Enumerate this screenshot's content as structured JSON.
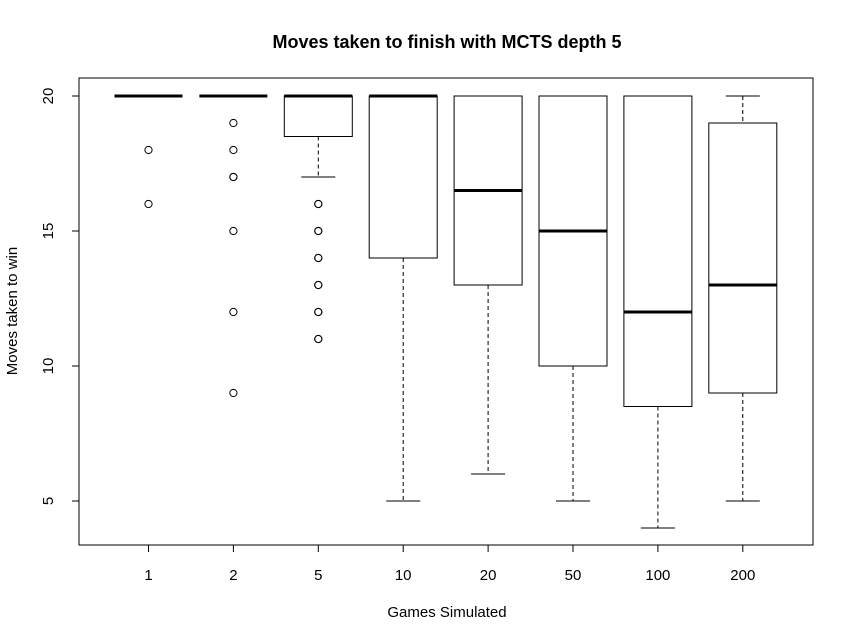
{
  "chart_data": {
    "type": "boxplot",
    "title": "Moves taken to finish with MCTS depth 5",
    "xlabel": "Games Simulated",
    "ylabel": "Moves taken to win",
    "ylim": [
      3.4,
      20.6
    ],
    "yticks": [
      5,
      10,
      15,
      20
    ],
    "grid": false,
    "categories": [
      "1",
      "2",
      "5",
      "10",
      "20",
      "50",
      "100",
      "200"
    ],
    "boxes": [
      {
        "category": "1",
        "whisker_low": 20,
        "q1": 20,
        "median": 20,
        "q3": 20,
        "whisker_high": 20,
        "outliers": [
          18,
          16
        ]
      },
      {
        "category": "2",
        "whisker_low": 20,
        "q1": 20,
        "median": 20,
        "q3": 20,
        "whisker_high": 20,
        "outliers": [
          19,
          18,
          17,
          17,
          15,
          12,
          9
        ]
      },
      {
        "category": "5",
        "whisker_low": 17,
        "q1": 18.5,
        "median": 20,
        "q3": 20,
        "whisker_high": 20,
        "outliers": [
          16,
          16,
          15,
          15,
          14,
          14,
          13,
          13,
          12,
          12,
          11,
          11
        ]
      },
      {
        "category": "10",
        "whisker_low": 5,
        "q1": 14,
        "median": 20,
        "q3": 20,
        "whisker_high": 20,
        "outliers": []
      },
      {
        "category": "20",
        "whisker_low": 6,
        "q1": 13,
        "median": 16.5,
        "q3": 20,
        "whisker_high": 20,
        "outliers": []
      },
      {
        "category": "50",
        "whisker_low": 5,
        "q1": 10,
        "median": 15,
        "q3": 20,
        "whisker_high": 20,
        "outliers": []
      },
      {
        "category": "100",
        "whisker_low": 4,
        "q1": 8.5,
        "median": 12,
        "q3": 20,
        "whisker_high": 20,
        "outliers": []
      },
      {
        "category": "200",
        "whisker_low": 5,
        "q1": 9,
        "median": 13,
        "q3": 19,
        "whisker_high": 20,
        "outliers": []
      }
    ]
  }
}
